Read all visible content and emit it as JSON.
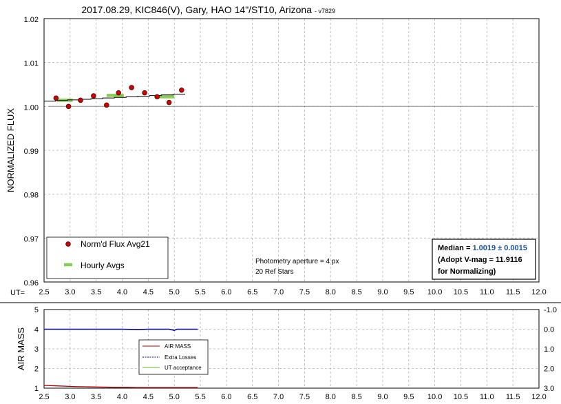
{
  "title": "2017.08.29, KIC846(V), Gary, HAO 14\"/ST10, Arizona",
  "version": "- v7829",
  "chart_data": [
    {
      "type": "scatter",
      "ylabel": "NORMALIZED FLUX",
      "x_axis_label": "UT=",
      "xlim": [
        2.5,
        12.0
      ],
      "ylim": [
        0.96,
        1.02
      ],
      "x_ticks": [
        "2.5",
        "3.0",
        "3.5",
        "4.0",
        "4.5",
        "5.0",
        "5.5",
        "6.0",
        "6.5",
        "7.0",
        "7.5",
        "8.0",
        "8.5",
        "9.0",
        "9.5",
        "10.0",
        "10.5",
        "11.0",
        "11.5",
        "12.0"
      ],
      "y_ticks": [
        "0.96",
        "0.97",
        "0.98",
        "0.99",
        "1.00",
        "1.01",
        "1.02"
      ],
      "grid": true,
      "series": [
        {
          "name": "Norm'd Flux Avg21",
          "color": "#cc0000",
          "x": [
            2.73,
            2.97,
            3.2,
            3.45,
            3.7,
            3.93,
            4.18,
            4.43,
            4.67,
            4.9,
            5.14
          ],
          "y": [
            1.0019,
            1.0,
            1.0014,
            1.0024,
            1.0003,
            1.0031,
            1.0043,
            1.0031,
            1.0022,
            1.0009,
            1.0037
          ]
        },
        {
          "name": "Hourly Avgs",
          "color": "#88cc55",
          "segments": [
            {
              "x0": 2.75,
              "x1": 3.05,
              "y": 1.0014
            },
            {
              "x0": 3.7,
              "x1": 4.03,
              "y": 1.0025
            },
            {
              "x0": 4.68,
              "x1": 5.0,
              "y": 1.0022
            }
          ]
        }
      ],
      "trend_line": {
        "x0": 2.5,
        "x1": 5.2,
        "y0": 1.0012,
        "y1": 1.0029
      },
      "baseline": 1.0,
      "legend": {
        "items": [
          "Norm'd Flux Avg21",
          "Hourly Avgs"
        ],
        "placement": "bottom-left"
      },
      "annotations": [
        "Photometry aperture = 4 px",
        "20 Ref Stars"
      ],
      "median_box": {
        "label": "Median = ",
        "value": "1.0019 ± 0.0015",
        "line2": "(Adopt V-mag = 11.9116",
        "line3": " for Normalizing)"
      }
    },
    {
      "type": "line",
      "ylabel": "AIR MASS",
      "xlim": [
        2.5,
        12.0
      ],
      "ylim": [
        1,
        5
      ],
      "y2lim": [
        -1.0,
        3.0
      ],
      "x_ticks": [
        "2.5",
        "3.0",
        "3.5",
        "4.0",
        "4.5",
        "5.0",
        "5.5",
        "6.0",
        "6.5",
        "7.0",
        "7.5",
        "8.0",
        "8.5",
        "9.0",
        "9.5",
        "10.0",
        "10.5",
        "11.0",
        "11.5",
        "12.0"
      ],
      "y_ticks": [
        "1",
        "2",
        "3",
        "4",
        "5"
      ],
      "y2_ticks": [
        "-1.0",
        "0.0",
        "1.0",
        "2.0",
        "3.0"
      ],
      "grid": true,
      "series": [
        {
          "name": "AIR MASS",
          "color": "#aa0000",
          "x": [
            2.5,
            2.7,
            2.9,
            3.1,
            3.3,
            3.5,
            3.7,
            3.9,
            4.1,
            4.3,
            4.5,
            4.7,
            4.9,
            5.1,
            5.3,
            5.45
          ],
          "y": [
            1.14,
            1.12,
            1.1,
            1.08,
            1.07,
            1.06,
            1.05,
            1.04,
            1.04,
            1.03,
            1.03,
            1.03,
            1.03,
            1.03,
            1.03,
            1.03
          ]
        },
        {
          "name": "Extra Losses",
          "color": "#000088",
          "x": [
            2.5,
            3.0,
            3.5,
            4.0,
            4.3,
            4.5,
            4.9,
            4.95,
            5.0,
            5.05,
            5.3,
            5.45
          ],
          "y": [
            0.0,
            0.0,
            0.0,
            0.0,
            0.02,
            0.0,
            0.0,
            0.03,
            0.06,
            0.0,
            0.0,
            0.0
          ]
        },
        {
          "name": "UT acceptance",
          "color": "#66bb33",
          "x": [],
          "y": []
        }
      ],
      "legend": {
        "items": [
          "AIR MASS",
          "Extra Losses",
          "UT acceptance"
        ],
        "placement": "top-left"
      }
    }
  ]
}
